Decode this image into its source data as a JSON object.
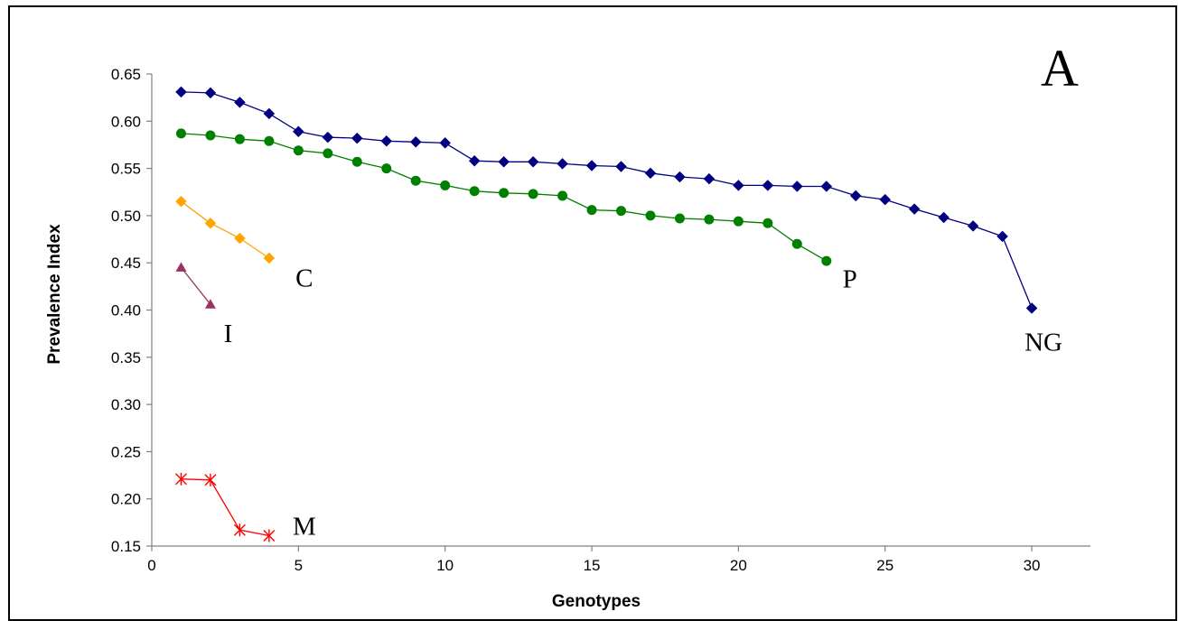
{
  "chart_data": {
    "type": "line",
    "title": "",
    "panel_label": "A",
    "xlabel": "Genotypes",
    "ylabel": "Prevalence Index",
    "xlim": [
      0,
      32
    ],
    "ylim": [
      0.15,
      0.65
    ],
    "x_ticks": [
      0,
      5,
      10,
      15,
      20,
      25,
      30
    ],
    "x_tick_labels": [
      "0",
      "5",
      "10",
      "15",
      "20",
      "25",
      "30"
    ],
    "y_ticks": [
      0.15,
      0.2,
      0.25,
      0.3,
      0.35,
      0.4,
      0.45,
      0.5,
      0.55,
      0.6,
      0.65
    ],
    "y_tick_labels": [
      "0.15",
      "0.20",
      "0.25",
      "0.30",
      "0.35",
      "0.40",
      "0.45",
      "0.50",
      "0.55",
      "0.60",
      "0.65"
    ],
    "grid": false,
    "legend": "none",
    "series": [
      {
        "name": "NG",
        "color": "#000080",
        "marker": "diamond",
        "label_pos": [
          30.4,
          0.357
        ],
        "x": [
          1,
          2,
          3,
          4,
          5,
          6,
          7,
          8,
          9,
          10,
          11,
          12,
          13,
          14,
          15,
          16,
          17,
          18,
          19,
          20,
          21,
          22,
          23,
          24,
          25,
          26,
          27,
          28,
          29,
          30
        ],
        "y": [
          0.631,
          0.63,
          0.62,
          0.608,
          0.589,
          0.583,
          0.582,
          0.579,
          0.578,
          0.577,
          0.558,
          0.557,
          0.557,
          0.555,
          0.553,
          0.552,
          0.545,
          0.541,
          0.539,
          0.532,
          0.532,
          0.531,
          0.531,
          0.521,
          0.517,
          0.507,
          0.498,
          0.489,
          0.478,
          0.402
        ]
      },
      {
        "name": "P",
        "color": "#008000",
        "marker": "circle",
        "label_pos": [
          23.8,
          0.424
        ],
        "x": [
          1,
          2,
          3,
          4,
          5,
          6,
          7,
          8,
          9,
          10,
          11,
          12,
          13,
          14,
          15,
          16,
          17,
          18,
          19,
          20,
          21,
          22,
          23
        ],
        "y": [
          0.587,
          0.585,
          0.581,
          0.579,
          0.569,
          0.566,
          0.557,
          0.55,
          0.537,
          0.532,
          0.526,
          0.524,
          0.523,
          0.521,
          0.506,
          0.505,
          0.5,
          0.497,
          0.496,
          0.494,
          0.492,
          0.47,
          0.452
        ]
      },
      {
        "name": "C",
        "color": "#FFA500",
        "marker": "diamond",
        "label_pos": [
          5.2,
          0.425
        ],
        "x": [
          1,
          2,
          3,
          4
        ],
        "y": [
          0.515,
          0.492,
          0.476,
          0.455
        ]
      },
      {
        "name": "I",
        "color": "#993366",
        "marker": "triangle",
        "label_pos": [
          2.6,
          0.366
        ],
        "x": [
          1,
          2
        ],
        "y": [
          0.445,
          0.406
        ]
      },
      {
        "name": "M",
        "color": "#FF0000",
        "marker": "asterisk",
        "label_pos": [
          5.2,
          0.162
        ],
        "x": [
          1,
          2,
          3,
          4
        ],
        "y": [
          0.221,
          0.22,
          0.167,
          0.161
        ]
      }
    ]
  }
}
